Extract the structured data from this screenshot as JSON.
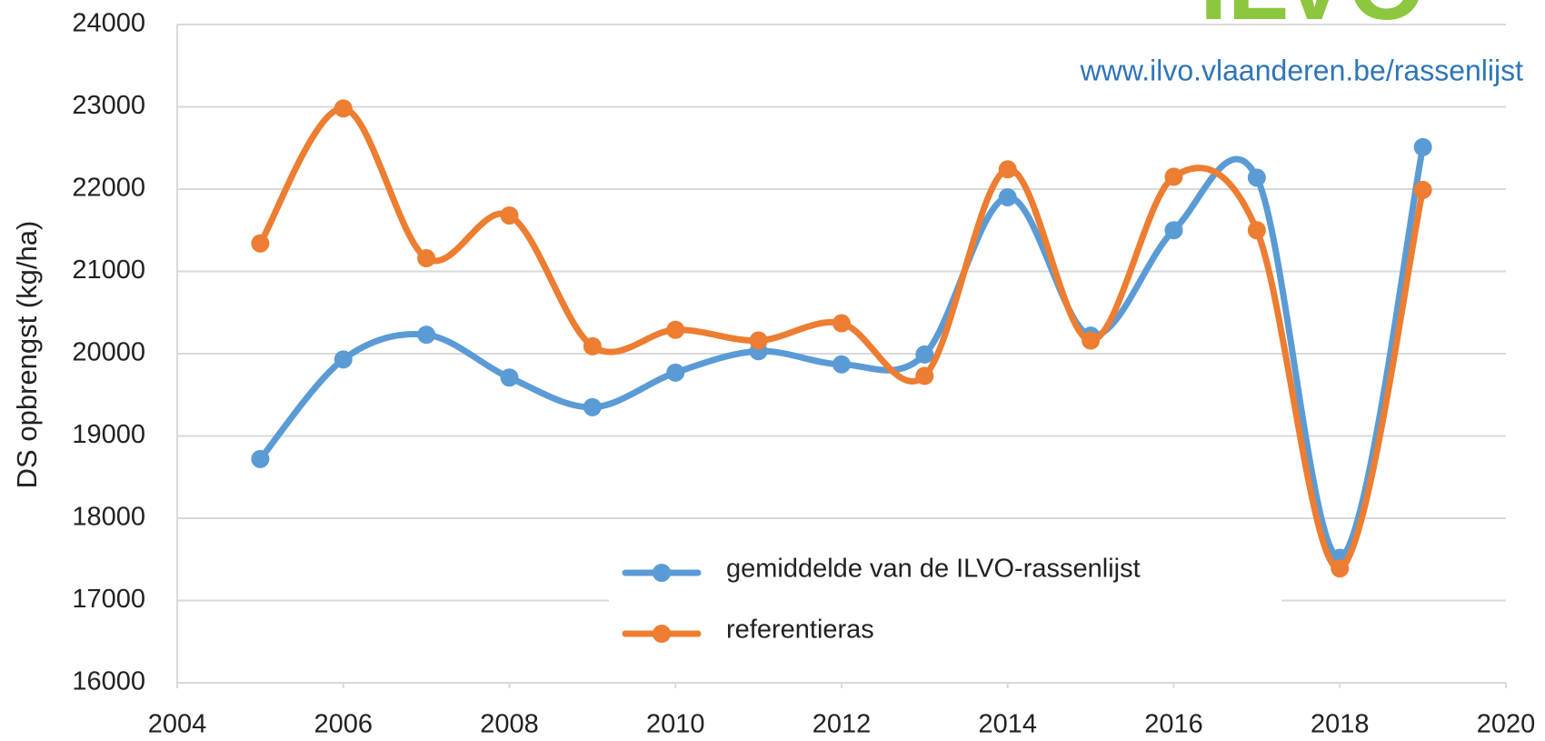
{
  "chart_data": {
    "type": "line",
    "logo": "ILVO",
    "annotation": "www.ilvo.vlaanderen.be/rassenlijst",
    "ylabel": "DS opbrengst (kg/ha)",
    "x": [
      2005,
      2006,
      2007,
      2008,
      2009,
      2010,
      2011,
      2012,
      2013,
      2014,
      2015,
      2016,
      2017,
      2018,
      2019
    ],
    "series": [
      {
        "name": "gemiddelde van de ILVO-rassenlijst",
        "color": "#5b9bd5",
        "values": [
          18720,
          19930,
          20230,
          19710,
          19350,
          19770,
          20030,
          19870,
          19990,
          21900,
          20220,
          21500,
          22140,
          17520,
          22510
        ]
      },
      {
        "name": "referentieras",
        "color": "#ed7d31",
        "values": [
          21340,
          22980,
          21160,
          21680,
          20090,
          20290,
          20160,
          20370,
          19730,
          22240,
          20160,
          22150,
          21500,
          17390,
          21990
        ]
      }
    ],
    "xlim": [
      2004,
      2020
    ],
    "xticks": [
      2004,
      2006,
      2008,
      2010,
      2012,
      2014,
      2016,
      2018,
      2020
    ],
    "ylim": [
      16000,
      24000
    ],
    "yticks": [
      16000,
      17000,
      18000,
      19000,
      20000,
      21000,
      22000,
      23000,
      24000
    ],
    "grid": true,
    "smooth": true
  }
}
